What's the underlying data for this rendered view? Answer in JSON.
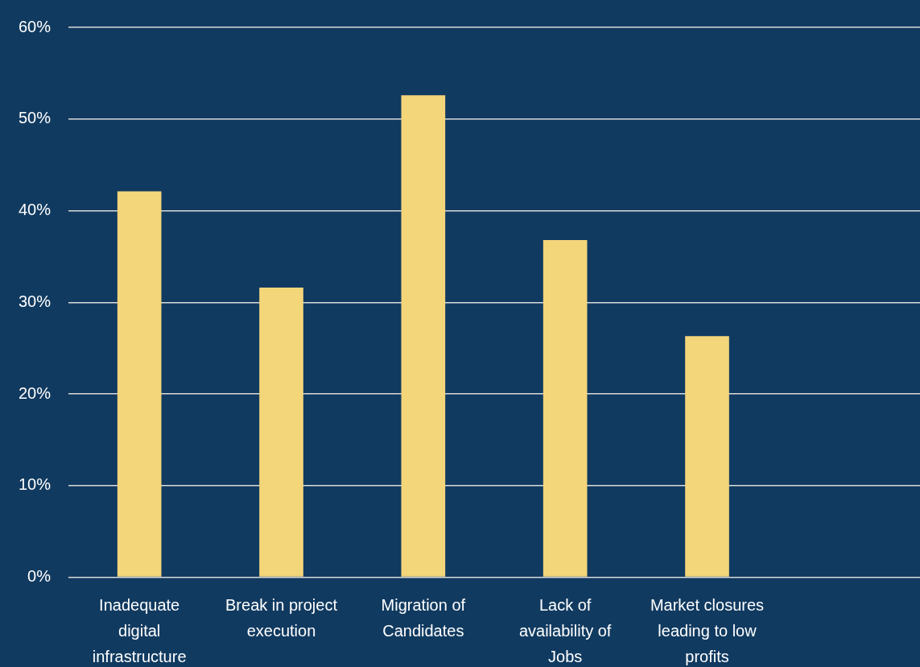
{
  "chart_data": {
    "type": "bar",
    "categories": [
      "Inadequate digital infrastructure",
      "Break in project execution",
      "Migration of Candidates",
      "Lack of availability of Jobs",
      "Market closures leading to low profits",
      null
    ],
    "values": [
      42.1,
      31.6,
      52.6,
      36.8,
      26.3,
      null
    ],
    "color": "#f3d57a",
    "ylim": [
      0,
      60
    ],
    "yticks": [
      {
        "value": 0,
        "label": "0%"
      },
      {
        "value": 10,
        "label": "10%"
      },
      {
        "value": 20,
        "label": "20%"
      },
      {
        "value": 30,
        "label": "30%"
      },
      {
        "value": 40,
        "label": "40%"
      },
      {
        "value": 50,
        "label": "50%"
      },
      {
        "value": 60,
        "label": "60%"
      }
    ],
    "grid": "y"
  }
}
